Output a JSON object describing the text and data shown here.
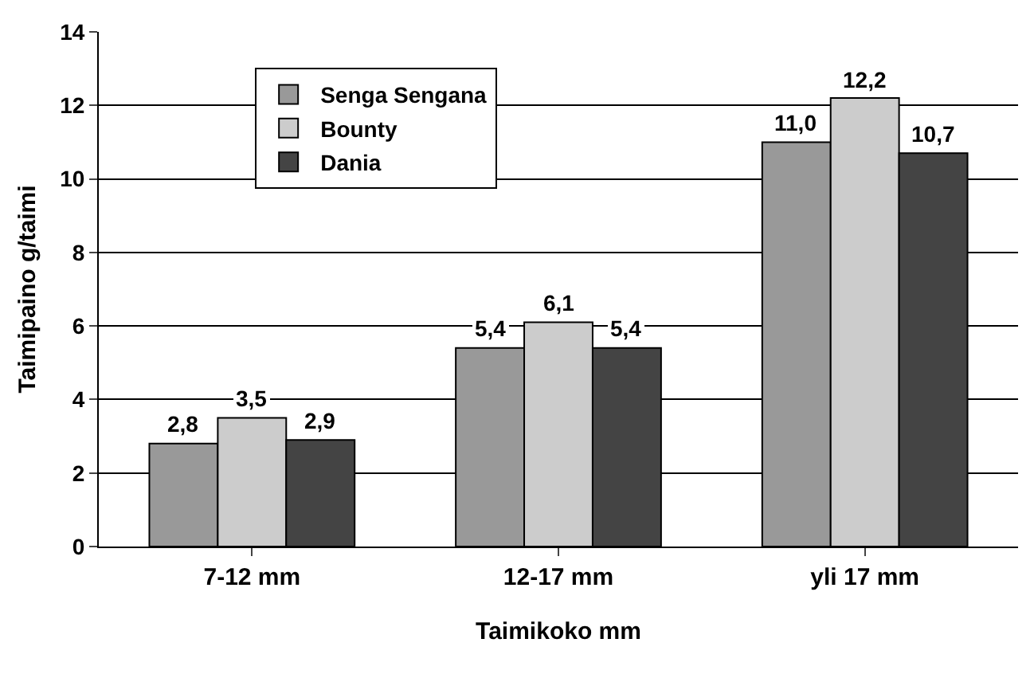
{
  "chart_data": {
    "type": "bar",
    "xlabel": "Taimikoko mm",
    "ylabel": "Taimipaino g/taimi",
    "categories": [
      "7-12 mm",
      "12-17 mm",
      "yli 17 mm"
    ],
    "series": [
      {
        "name": "Senga Sengana",
        "color": "#999999",
        "values": [
          2.8,
          5.4,
          11.0
        ],
        "value_labels": [
          "2,8",
          "5,4",
          "11,0"
        ]
      },
      {
        "name": "Bounty",
        "color": "#cccccc",
        "values": [
          3.5,
          6.1,
          12.2
        ],
        "value_labels": [
          "3,5",
          "6,1",
          "12,2"
        ]
      },
      {
        "name": "Dania",
        "color": "#444444",
        "values": [
          2.9,
          5.4,
          10.7
        ],
        "value_labels": [
          "2,9",
          "5,4",
          "10,7"
        ]
      }
    ],
    "ylim": [
      0,
      14
    ],
    "yticks": [
      0,
      2,
      4,
      6,
      8,
      10,
      12,
      14
    ],
    "grid": "y",
    "legend": "top left"
  }
}
